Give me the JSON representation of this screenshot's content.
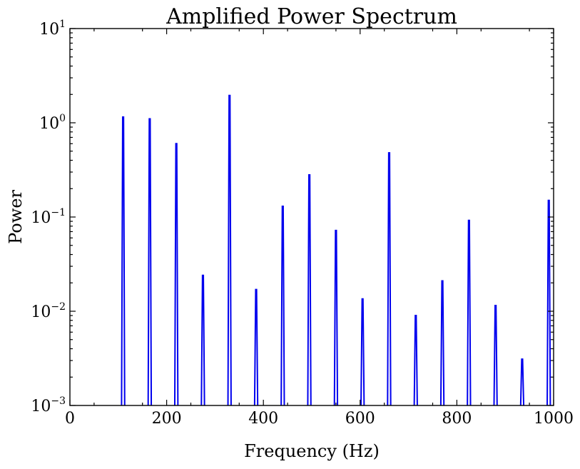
{
  "chart_data": {
    "type": "line",
    "title": "Amplified Power Spectrum",
    "xlabel": "Frequency (Hz)",
    "ylabel": "Power",
    "xlim": [
      0,
      1000
    ],
    "ylim": [
      0.001,
      10
    ],
    "yscale": "log",
    "grid": false,
    "legend": "none",
    "series_color": "#0000ee",
    "x_ticks": [
      {
        "value": 0,
        "label": "0"
      },
      {
        "value": 200,
        "label": "200"
      },
      {
        "value": 400,
        "label": "400"
      },
      {
        "value": 600,
        "label": "600"
      },
      {
        "value": 800,
        "label": "800"
      },
      {
        "value": 1000,
        "label": "1000"
      }
    ],
    "y_ticks": [
      {
        "value": 10,
        "base": "10",
        "exp": "1"
      },
      {
        "value": 1,
        "base": "10",
        "exp": "0"
      },
      {
        "value": 0.1,
        "base": "10",
        "exp": "−1"
      },
      {
        "value": 0.01,
        "base": "10",
        "exp": "−2"
      },
      {
        "value": 0.001,
        "base": "10",
        "exp": "−3"
      }
    ],
    "peaks": [
      {
        "x": 110,
        "y": 1.15
      },
      {
        "x": 165,
        "y": 1.1
      },
      {
        "x": 220,
        "y": 0.6
      },
      {
        "x": 275,
        "y": 0.024
      },
      {
        "x": 330,
        "y": 1.95
      },
      {
        "x": 385,
        "y": 0.017
      },
      {
        "x": 440,
        "y": 0.13
      },
      {
        "x": 495,
        "y": 0.28
      },
      {
        "x": 550,
        "y": 0.072
      },
      {
        "x": 605,
        "y": 0.0135
      },
      {
        "x": 660,
        "y": 0.48
      },
      {
        "x": 715,
        "y": 0.009
      },
      {
        "x": 770,
        "y": 0.021
      },
      {
        "x": 825,
        "y": 0.092
      },
      {
        "x": 880,
        "y": 0.0115
      },
      {
        "x": 935,
        "y": 0.0031
      },
      {
        "x": 990,
        "y": 0.15
      }
    ]
  }
}
